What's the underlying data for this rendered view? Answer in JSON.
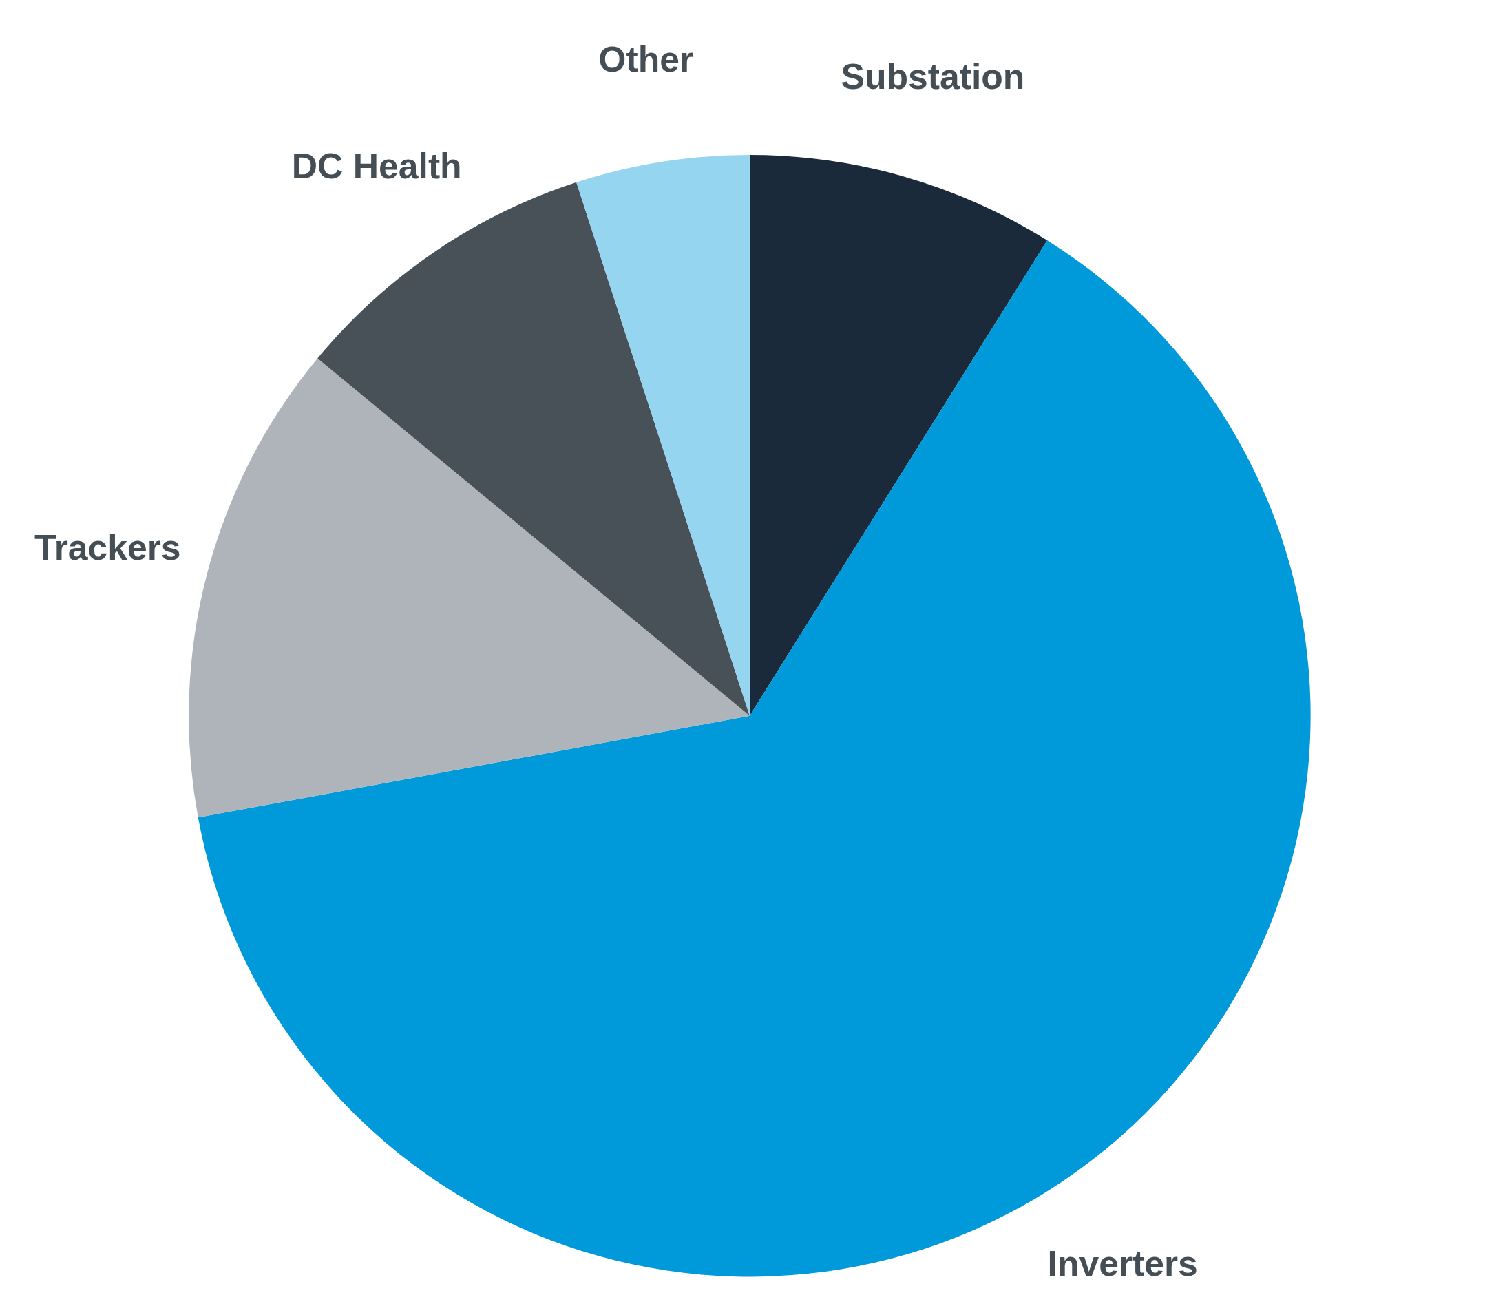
{
  "chart_data": {
    "type": "pie",
    "categories": [
      "Substation",
      "Inverters",
      "Trackers",
      "DC Health",
      "Other"
    ],
    "values": [
      8.9,
      63.2,
      13.9,
      9.0,
      5.0
    ],
    "colors": [
      "#1b2a3a",
      "#0099d9",
      "#aeb4ba",
      "#475157",
      "#95d5f0"
    ]
  }
}
